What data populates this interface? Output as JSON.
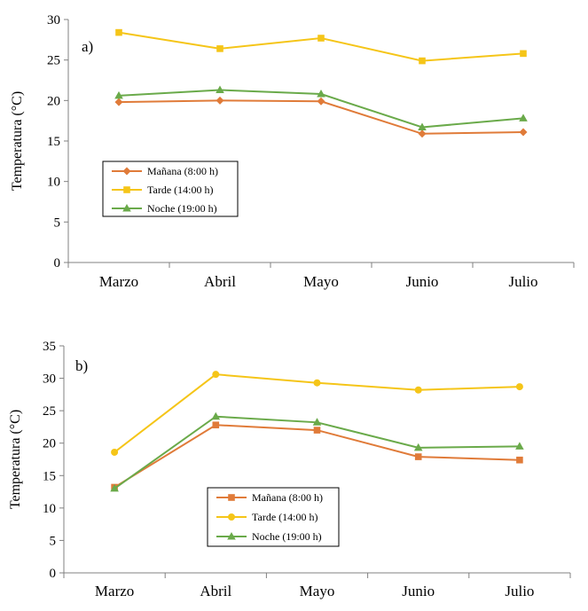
{
  "colors": {
    "manana": "#E07B39",
    "tarde": "#F5C518",
    "noche": "#6AAA4A",
    "axis": "#808080"
  },
  "chart_data": [
    {
      "type": "line",
      "panel_label": "a)",
      "ylabel": "Temperatura (°C)",
      "ylim": [
        0,
        30
      ],
      "yticks": [
        0,
        5,
        10,
        15,
        20,
        25,
        30
      ],
      "categories": [
        "Marzo",
        "Abril",
        "Mayo",
        "Junio",
        "Julio"
      ],
      "legend_position": "lower-left",
      "series": [
        {
          "name": "Mañana (8:00 h)",
          "color": "#E07B39",
          "marker": "diamond",
          "values": [
            19.8,
            20.0,
            19.9,
            15.9,
            16.1
          ]
        },
        {
          "name": "Tarde (14:00 h)",
          "color": "#F5C518",
          "marker": "square",
          "values": [
            28.4,
            26.4,
            27.7,
            24.9,
            25.8
          ]
        },
        {
          "name": "Noche (19:00 h)",
          "color": "#6AAA4A",
          "marker": "triangle",
          "values": [
            20.6,
            21.3,
            20.8,
            16.7,
            17.8
          ]
        }
      ]
    },
    {
      "type": "line",
      "panel_label": "b)",
      "ylabel": "Temperatura (°C)",
      "ylim": [
        0,
        35
      ],
      "yticks": [
        0,
        5,
        10,
        15,
        20,
        25,
        30,
        35
      ],
      "categories": [
        "Marzo",
        "Abril",
        "Mayo",
        "Junio",
        "Julio"
      ],
      "legend_position": "lower-center",
      "series": [
        {
          "name": "Mañana (8:00 h)",
          "color": "#E07B39",
          "marker": "square",
          "values": [
            13.2,
            22.8,
            22.0,
            17.9,
            17.4
          ]
        },
        {
          "name": "Tarde (14:00 h)",
          "color": "#F5C518",
          "marker": "circle",
          "values": [
            18.6,
            30.6,
            29.3,
            28.2,
            28.7
          ]
        },
        {
          "name": "Noche (19:00 h)",
          "color": "#6AAA4A",
          "marker": "triangle",
          "values": [
            13.0,
            24.1,
            23.2,
            19.3,
            19.5
          ]
        }
      ]
    }
  ]
}
